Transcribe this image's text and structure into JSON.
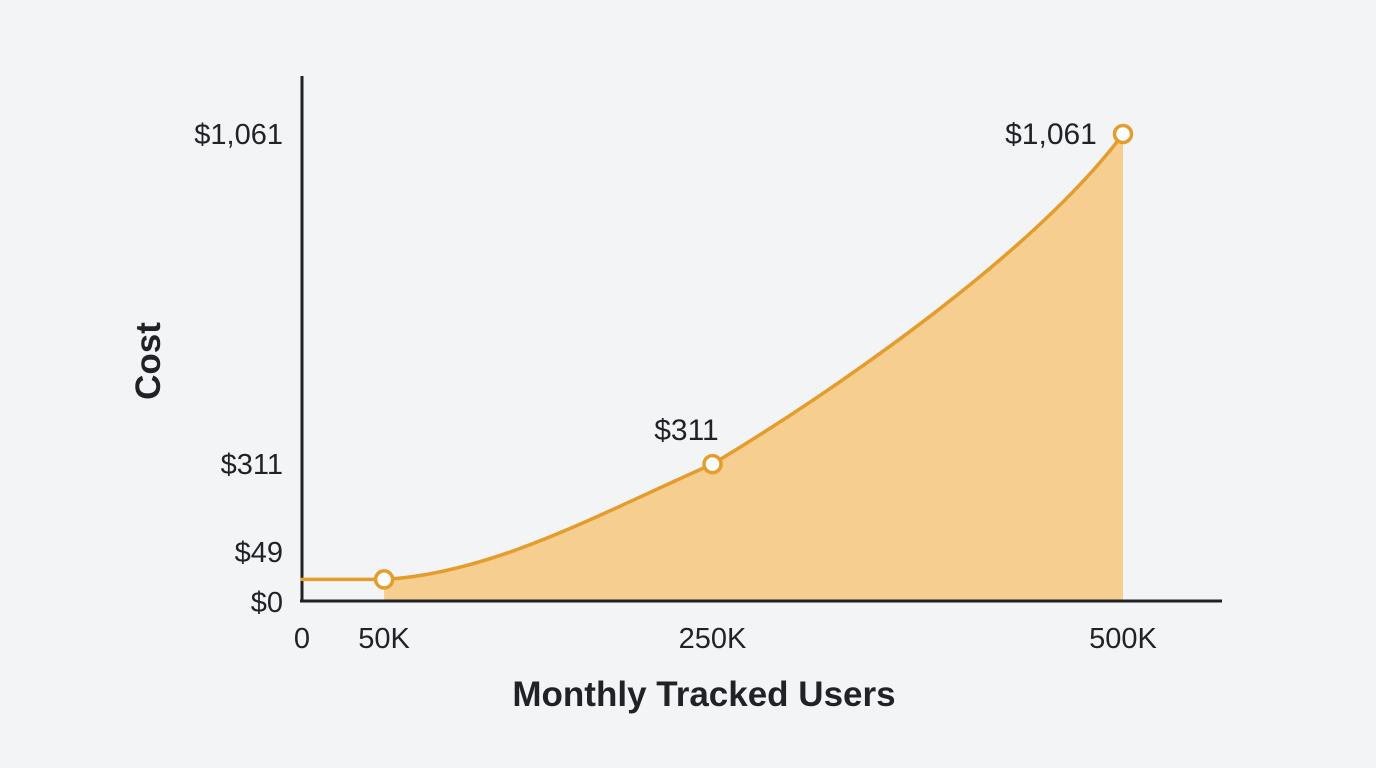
{
  "chart_data": {
    "type": "area",
    "title": "",
    "xlabel": "Monthly Tracked Users",
    "ylabel": "Cost",
    "x_ticks": [
      {
        "value": 0,
        "label": "0"
      },
      {
        "value": 50000,
        "label": "50K"
      },
      {
        "value": 250000,
        "label": "250K"
      },
      {
        "value": 500000,
        "label": "500K"
      }
    ],
    "y_ticks": [
      {
        "value": 0,
        "label": "$0"
      },
      {
        "value": 49,
        "label": "$49"
      },
      {
        "value": 311,
        "label": "$311"
      },
      {
        "value": 1061,
        "label": "$1,061"
      }
    ],
    "xlim": [
      0,
      560000
    ],
    "ylim": [
      0,
      1200
    ],
    "x": [
      0,
      50000,
      250000,
      500000
    ],
    "values": [
      49,
      49,
      311,
      1061
    ],
    "markers": [
      {
        "x": 50000,
        "y": 49,
        "label": ""
      },
      {
        "x": 250000,
        "y": 311,
        "label": "$311"
      },
      {
        "x": 500000,
        "y": 1061,
        "label": "$1,061"
      }
    ],
    "shaded_from_x": 50000,
    "grid": false,
    "colors": {
      "line": "#e49c2c",
      "fill": "#f6ce8f",
      "axis": "#1f2328"
    }
  }
}
